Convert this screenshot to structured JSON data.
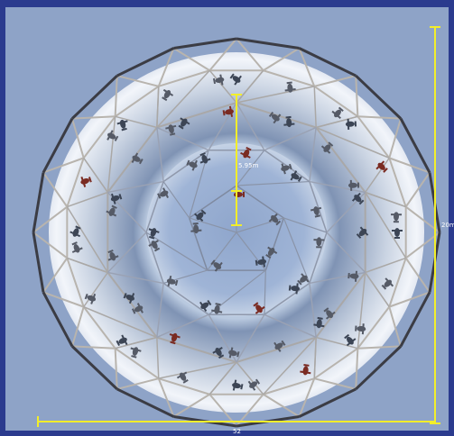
{
  "labels": {
    "center_height": "5.95m",
    "right_dimension": "20m",
    "bottom_dimension": "52"
  }
}
